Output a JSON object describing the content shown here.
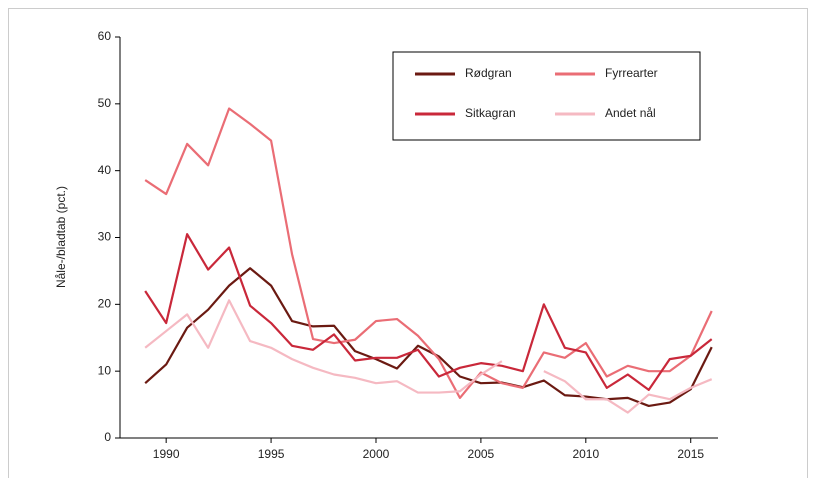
{
  "chart_data": {
    "type": "line",
    "y_label": "Nåle-/bladtab (pct.)",
    "x": [
      1989,
      1990,
      1991,
      1992,
      1993,
      1994,
      1995,
      1996,
      1997,
      1998,
      1999,
      2000,
      2001,
      2002,
      2003,
      2004,
      2005,
      2006,
      2007,
      2008,
      2009,
      2010,
      2011,
      2012,
      2013,
      2014,
      2015,
      2016
    ],
    "series": [
      {
        "name": "Rødgran",
        "color": "#6b1a12",
        "values": [
          8.2,
          11,
          16.5,
          19.2,
          22.8,
          25.4,
          22.8,
          17.5,
          16.7,
          16.8,
          13,
          11.8,
          10.4,
          13.8,
          12.2,
          9.2,
          8.2,
          8.3,
          7.6,
          8.6,
          6.4,
          6.2,
          5.8,
          6,
          4.8,
          5.3,
          7.3,
          13.6
        ]
      },
      {
        "name": "Fyrrearter",
        "color": "#ea6d75",
        "values": [
          38.6,
          36.5,
          44,
          40.8,
          49.3,
          47,
          44.5,
          27.5,
          14.8,
          14.2,
          14.7,
          17.5,
          17.8,
          15.3,
          11.8,
          6,
          9.8,
          8.2,
          7.5,
          12.8,
          12,
          14.2,
          9.2,
          10.8,
          10,
          10,
          12.3,
          19
        ]
      },
      {
        "name": "Sitkagran",
        "color": "#c9283a",
        "values": [
          22,
          17.2,
          30.5,
          25.2,
          28.5,
          19.8,
          17.2,
          13.8,
          13.2,
          15.5,
          11.6,
          12,
          12,
          13.2,
          9.2,
          10.5,
          11.2,
          10.8,
          10,
          20,
          13.5,
          12.8,
          7.5,
          9.5,
          7.2,
          11.8,
          12.3,
          14.8
        ]
      },
      {
        "name": "Andet nål",
        "color": "#f5b9c2",
        "values": [
          13.5,
          16,
          18.5,
          13.5,
          20.6,
          14.5,
          13.5,
          11.8,
          10.5,
          9.5,
          9,
          8.2,
          8.5,
          6.8,
          6.8,
          7,
          9.5,
          11.5,
          null,
          10,
          8.5,
          5.8,
          5.8,
          3.8,
          6.5,
          5.8,
          7.5,
          8.8
        ]
      }
    ],
    "xlim": [
      1987.8,
      2016.3
    ],
    "xticks": [
      1990,
      1995,
      2000,
      2005,
      2010,
      2015
    ],
    "ylim": [
      0,
      60
    ],
    "yticks": [
      0,
      10,
      20,
      30,
      40,
      50,
      60
    ],
    "legend": "upper right"
  }
}
